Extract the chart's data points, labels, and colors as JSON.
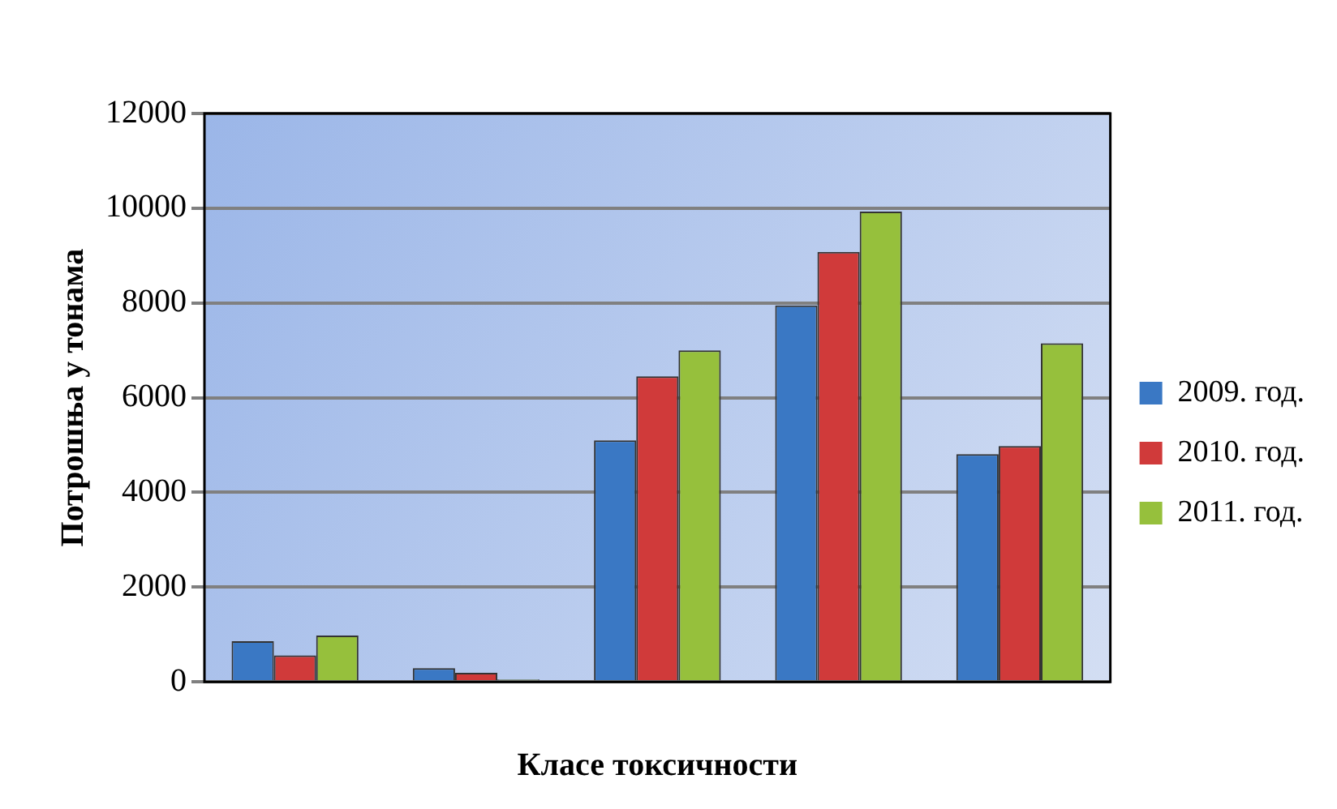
{
  "chart_data": {
    "type": "bar",
    "xlabel": "Класе токсичности",
    "ylabel": "Потрошња у тонама",
    "categories": [
      null,
      null,
      null,
      null,
      null
    ],
    "series": [
      {
        "name": "2009. год.",
        "color": "#3a78c4",
        "values": [
          860,
          290,
          5100,
          7950,
          4810
        ]
      },
      {
        "name": "2010. год.",
        "color": "#d03a3a",
        "values": [
          560,
          190,
          6450,
          9080,
          4980
        ]
      },
      {
        "name": "2011. год.",
        "color": "#96c03c",
        "values": [
          980,
          50,
          7000,
          9930,
          7150
        ]
      }
    ],
    "ylim": [
      0,
      12000
    ],
    "yticks": [
      0,
      2000,
      4000,
      6000,
      8000,
      10000,
      12000
    ],
    "grid": "y",
    "legend": "right"
  }
}
